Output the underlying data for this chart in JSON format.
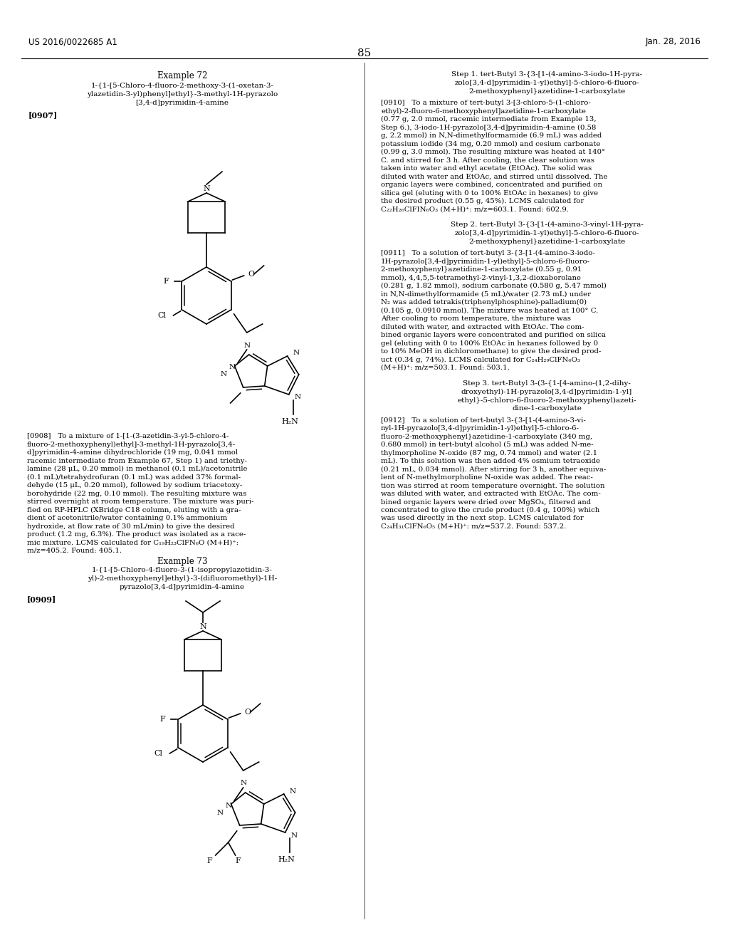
{
  "page_number": "85",
  "patent_number": "US 2016/0022685 A1",
  "patent_date": "Jan. 28, 2016",
  "background_color": "#ffffff",
  "example72_title": "Example 72",
  "example72_compound_lines": [
    "1-{1-[5-Chloro-4-fluoro-2-methoxy-3-(1-oxetan-3-",
    "ylazetidin-3-yl)phenyl]ethyl}-3-methyl-1H-pyrazolo",
    "[3,4-d]pyrimidin-4-amine"
  ],
  "example72_tag": "[0907]",
  "example72_body_lines": [
    "[0908]   To a mixture of 1-[1-(3-azetidin-3-yl-5-chloro-4-",
    "fluoro-2-methoxyphenyl)ethyl]-3-methyl-1H-pyrazolo[3,4-",
    "d]pyrimidin-4-amine dihydrochloride (19 mg, 0.041 mmol",
    "racemic intermediate from Example 67, Step 1) and triethy-",
    "lamine (28 μL, 0.20 mmol) in methanol (0.1 mL)/acetonitrile",
    "(0.1 mL)/tetrahydrofuran (0.1 mL) was added 37% formal-",
    "dehyde (15 μL, 0.20 mmol), followed by sodium triacetoxy-",
    "borohydride (22 mg, 0.10 mmol). The resulting mixture was",
    "stirred overnight at room temperature. The mixture was puri-",
    "fied on RP-HPLC (XBridge C18 column, eluting with a gra-",
    "dient of acetonitrile/water containing 0.1% ammonium",
    "hydroxide, at flow rate of 30 mL/min) to give the desired",
    "product (1.2 mg, 6.3%). The product was isolated as a race-",
    "mic mixture. LCMS calculated for C₁₉H₂₃ClFN₆O (M+H)⁺:",
    "m/z=405.2. Found: 405.1."
  ],
  "example73_title": "Example 73",
  "example73_compound_lines": [
    "1-{1-[5-Chloro-4-fluoro-3-(1-isopropylazetidin-3-",
    "yl)-2-methoxyphenyl]ethyl}-3-(difluoromethyl)-1H-",
    "pyrazolo[3,4-d]pyrimidin-4-amine"
  ],
  "example73_tag": "[0909]",
  "step1_title_lines": [
    "Step 1. tert-Butyl 3-{3-[1-(4-amino-3-iodo-1H-pyra-",
    "zolo[3,4-d]pyrimidin-1-yl)ethyl]-5-chloro-6-fluoro-",
    "2-methoxyphenyl}azetidine-1-carboxylate"
  ],
  "step1_body_lines": [
    "[0910]   To a mixture of tert-butyl 3-[3-chloro-5-(1-chloro-",
    "ethyl)-2-fluoro-6-methoxyphenyl]azetidine-1-carboxylate",
    "(0.77 g, 2.0 mmol, racemic intermediate from Example 13,",
    "Step 6.), 3-iodo-1H-pyrazolo[3,4-d]pyrimidin-4-amine (0.58",
    "g, 2.2 mmol) in N,N-dimethylformamide (6.9 mL) was added",
    "potassium iodide (34 mg, 0.20 mmol) and cesium carbonate",
    "(0.99 g, 3.0 mmol). The resulting mixture was heated at 140°",
    "C. and stirred for 3 h. After cooling, the clear solution was",
    "taken into water and ethyl acetate (EtOAc). The solid was",
    "diluted with water and EtOAc, and stirred until dissolved. The",
    "organic layers were combined, concentrated and purified on",
    "silica gel (eluting with 0 to 100% EtOAc in hexanes) to give",
    "the desired product (0.55 g, 45%). LCMS calculated for",
    "C₂₂H₂₆ClFIN₆O₃ (M+H)⁺: m/z=603.1. Found: 602.9."
  ],
  "step2_title_lines": [
    "Step 2. tert-Butyl 3-{3-[1-(4-amino-3-vinyl-1H-pyra-",
    "zolo[3,4-d]pyrimidin-1-yl)ethyl]-5-chloro-6-fluoro-",
    "2-methoxyphenyl}azetidine-1-carboxylate"
  ],
  "step2_body_lines": [
    "[0911]   To a solution of tert-butyl 3-{3-[1-(4-amino-3-iodo-",
    "1H-pyrazolo[3,4-d]pyrimidin-1-yl)ethyl]-5-chloro-6-fluoro-",
    "2-methoxyphenyl}azetidine-1-carboxylate (0.55 g, 0.91",
    "mmol), 4,4,5,5-tetramethyl-2-vinyl-1,3,2-dioxaborolane",
    "(0.281 g, 1.82 mmol), sodium carbonate (0.580 g, 5.47 mmol)",
    "in N,N-dimethylformamide (5 mL)/water (2.73 mL) under",
    "N₂ was added tetrakis(triphenylphosphine)-palladium(0)",
    "(0.105 g, 0.0910 mmol). The mixture was heated at 100° C.",
    "After cooling to room temperature, the mixture was",
    "diluted with water, and extracted with EtOAc. The com-",
    "bined organic layers were concentrated and purified on silica",
    "gel (eluting with 0 to 100% EtOAc in hexanes followed by 0",
    "to 10% MeOH in dichloromethane) to give the desired prod-",
    "uct (0.34 g, 74%). LCMS calculated for C₂₄H₂₉ClFN₆O₃",
    "(M+H)⁺: m/z=503.1. Found: 503.1."
  ],
  "step3_title_lines": [
    "Step 3. tert-Butyl 3-(3-{1-[4-amino-(1,2-dihy-",
    "droxyethyl)-1H-pyrazolo[3,4-d]pyrimidin-1-yl]",
    "ethyl}-5-chloro-6-fluoro-2-methoxyphenyl)azeti-",
    "dine-1-carboxylate"
  ],
  "step3_body_lines": [
    "[0912]   To a solution of tert-butyl 3-{3-[1-(4-amino-3-vi-",
    "nyl-1H-pyrazolo[3,4-d]pyrimidin-1-yl)ethyl]-5-chloro-6-",
    "fluoro-2-methoxyphenyl}azetidine-1-carboxylate (340 mg,",
    "0.680 mmol) in tert-butyl alcohol (5 mL) was added N-me-",
    "thylmorpholine N-oxide (87 mg, 0.74 mmol) and water (2.1",
    "mL). To this solution was then added 4% osmium tetraoxide",
    "(0.21 mL, 0.034 mmol). After stirring for 3 h, another equiva-",
    "lent of N-methylmorpholine N-oxide was added. The reac-",
    "tion was stirred at room temperature overnight. The solution",
    "was diluted with water, and extracted with EtOAc. The com-",
    "bined organic layers were dried over MgSO₄, filtered and",
    "concentrated to give the crude product (0.4 g, 100%) which",
    "was used directly in the next step. LCMS calculated for",
    "C₂₄H₃₁ClFN₆O₅ (M+H)⁺: m/z=537.2. Found: 537.2."
  ]
}
